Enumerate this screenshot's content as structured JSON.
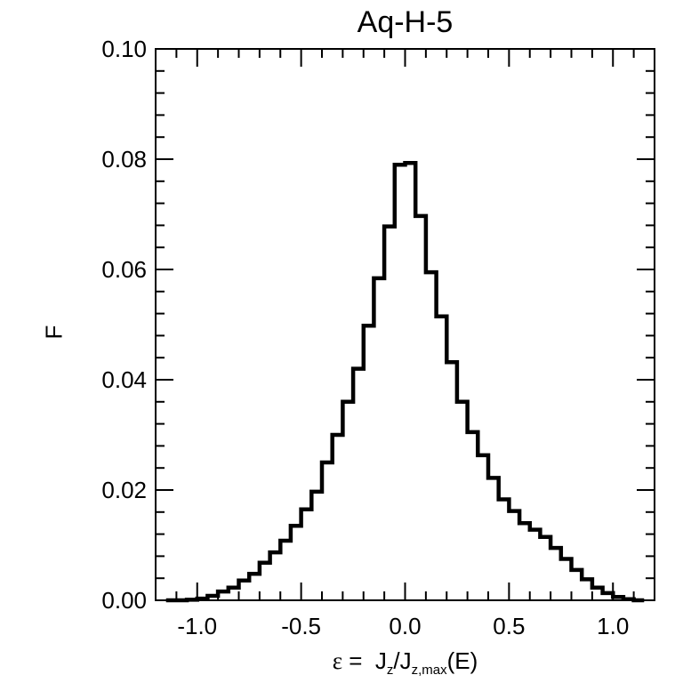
{
  "chart_data": {
    "type": "histogram",
    "title": "Aq-H-5",
    "ylabel": "F",
    "xlabel": {
      "symbol": "ε",
      "eq": " =  ",
      "j1": "J",
      "j1_sub": "z",
      "slash": "/J",
      "j2_sub": "z,max",
      "tail": "(E)"
    },
    "xlim": [
      -1.2,
      1.2
    ],
    "ylim": [
      0.0,
      0.1
    ],
    "xticks": [
      -1.0,
      -0.5,
      0.0,
      0.5,
      1.0
    ],
    "xtick_labels": [
      "-1.0",
      "-0.5",
      "0.0",
      "0.5",
      "1.0"
    ],
    "yticks": [
      0.0,
      0.02,
      0.04,
      0.06,
      0.08,
      0.1
    ],
    "ytick_labels": [
      "0.00",
      "0.02",
      "0.04",
      "0.06",
      "0.08",
      "0.10"
    ],
    "grid": false,
    "line_color": "#000000",
    "bin_edges": [
      -1.15,
      -1.1,
      -1.05,
      -1.0,
      -0.95,
      -0.9,
      -0.85,
      -0.8,
      -0.75,
      -0.7,
      -0.65,
      -0.6,
      -0.55,
      -0.5,
      -0.45,
      -0.4,
      -0.35,
      -0.3,
      -0.25,
      -0.2,
      -0.15,
      -0.1,
      -0.05,
      0.0,
      0.05,
      0.1,
      0.15,
      0.2,
      0.25,
      0.3,
      0.35,
      0.4,
      0.45,
      0.5,
      0.55,
      0.6,
      0.65,
      0.7,
      0.75,
      0.8,
      0.85,
      0.9,
      0.95,
      1.0,
      1.05,
      1.1,
      1.15
    ],
    "values": [
      0.0,
      0.0,
      0.0001,
      0.0003,
      0.0008,
      0.0016,
      0.0023,
      0.0036,
      0.0048,
      0.0068,
      0.0087,
      0.0108,
      0.0135,
      0.0165,
      0.0197,
      0.025,
      0.03,
      0.036,
      0.042,
      0.0498,
      0.0584,
      0.0678,
      0.079,
      0.0793,
      0.0697,
      0.0595,
      0.0515,
      0.0432,
      0.036,
      0.0305,
      0.0263,
      0.0222,
      0.0183,
      0.0162,
      0.014,
      0.0128,
      0.0115,
      0.0095,
      0.0075,
      0.0055,
      0.0038,
      0.0023,
      0.0013,
      0.0006,
      0.0002,
      0.0
    ]
  }
}
